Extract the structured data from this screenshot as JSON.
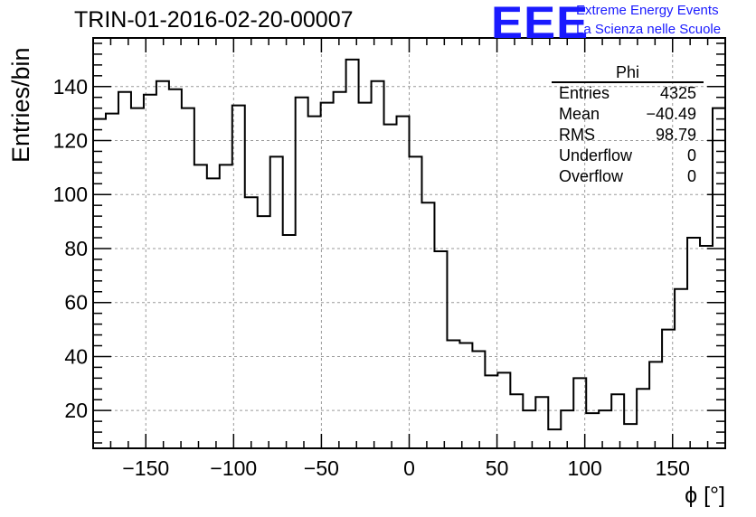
{
  "header": {
    "title": "TRIN-01-2016-02-20-00007",
    "logo": "EEE",
    "tagline_1": "Extreme Energy Events",
    "tagline_2": "La Scienza nelle Scuole"
  },
  "stats_box": {
    "name": "Phi",
    "rows": [
      {
        "label": "Entries",
        "value": "4325"
      },
      {
        "label": "Mean",
        "value": "−40.49"
      },
      {
        "label": "RMS",
        "value": "98.79"
      },
      {
        "label": "Underflow",
        "value": "0"
      },
      {
        "label": "Overflow",
        "value": "0"
      }
    ]
  },
  "chart_data": {
    "type": "bar",
    "style": "step-histogram",
    "title": "TRIN-01-2016-02-20-00007",
    "xlabel": "ϕ [°]",
    "ylabel": "Entries/bin",
    "xlim": [
      -180,
      180
    ],
    "ylim": [
      6,
      158
    ],
    "bin_width": 7.2,
    "x_ticks": [
      -150,
      -100,
      -50,
      0,
      50,
      100,
      150
    ],
    "x_tick_labels": [
      "−150",
      "−100",
      "−50",
      "0",
      "50",
      "100",
      "150"
    ],
    "y_ticks": [
      20,
      40,
      60,
      80,
      100,
      120,
      140
    ],
    "y_tick_labels": [
      "20",
      "40",
      "60",
      "80",
      "100",
      "120",
      "140"
    ],
    "grid": true,
    "line_color": "#000000",
    "grid_color": "#9a9a9a",
    "values": [
      128,
      130,
      138,
      132,
      137,
      142,
      139,
      132,
      111,
      106,
      111,
      133,
      99,
      92,
      114,
      85,
      136,
      129,
      134,
      138,
      150,
      134,
      142,
      126,
      129,
      114,
      97,
      79,
      46,
      45,
      42,
      33,
      34,
      26,
      20,
      25,
      13,
      20,
      32,
      19,
      20,
      26,
      15,
      28,
      38,
      50,
      65,
      84,
      81,
      132
    ]
  }
}
